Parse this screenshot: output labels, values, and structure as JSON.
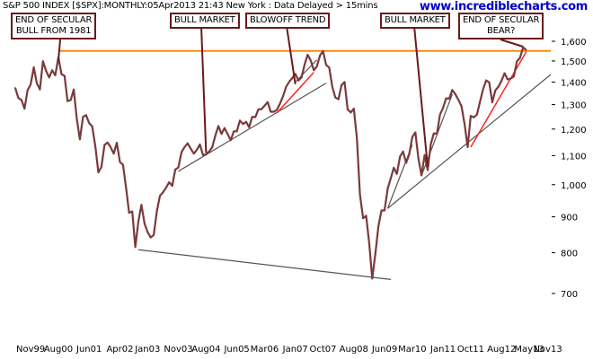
{
  "header": {
    "title": "S&P 500 INDEX [$SPX]:MONTHLY:05Apr2013 21:43 New York : Data Delayed > 15mins",
    "watermark": "www.incrediblecharts.com"
  },
  "annotations": [
    {
      "text": "END OF SECULAR\nBULL FROM 1981",
      "key": "end-of-secular-bull"
    },
    {
      "text": "BULL MARKET",
      "key": "bull-market-1"
    },
    {
      "text": "BLOWOFF TREND",
      "key": "blowoff-trend"
    },
    {
      "text": "BULL MARKET",
      "key": "bull-market-2"
    },
    {
      "text": "END OF SECULAR\nBEAR?",
      "key": "end-of-secular-bear"
    }
  ],
  "colors": {
    "price": "#7a3a3a",
    "resistance": "#ff8a00",
    "trend_red": "#ff2222",
    "trend_grey": "#555555",
    "annotation_border": "#6b1a1a",
    "watermark": "#0000cc"
  },
  "chart_data": {
    "type": "line",
    "title": "S&P 500 INDEX [$SPX]:MONTHLY:05Apr2013 21:43 New York : Data Delayed > 15mins",
    "y_scale": "log",
    "ylim": [
      650,
      1650
    ],
    "y_ticks": [
      700,
      800,
      900,
      1000,
      1100,
      1200,
      1300,
      1400,
      1500,
      1600
    ],
    "y_tick_labels": [
      "700",
      "800",
      "900",
      "1,000",
      "1,100",
      "1,200",
      "1,300",
      "1,400",
      "1,500",
      "1,600"
    ],
    "x_ticks": [
      "Nov99",
      "Aug00",
      "Jun01",
      "Apr02",
      "Jan03",
      "Nov03",
      "Aug04",
      "Jun05",
      "Mar06",
      "Jan07",
      "Oct07",
      "Aug08",
      "Jun09",
      "Mar10",
      "Jan11",
      "Oct11",
      "Aug12",
      "May13",
      "Nov13"
    ],
    "x_range": [
      "1999-06",
      "2013-12"
    ],
    "grid": false,
    "series": [
      {
        "x": [
          "1999-06",
          "1999-07",
          "1999-08",
          "1999-09",
          "1999-10",
          "1999-11",
          "1999-12",
          "2000-01",
          "2000-02",
          "2000-03",
          "2000-04",
          "2000-05",
          "2000-06",
          "2000-07",
          "2000-08",
          "2000-09",
          "2000-10",
          "2000-11",
          "2000-12",
          "2001-01",
          "2001-02",
          "2001-03",
          "2001-04",
          "2001-05",
          "2001-06",
          "2001-07",
          "2001-08",
          "2001-09",
          "2001-10",
          "2001-11",
          "2001-12",
          "2002-01",
          "2002-02",
          "2002-03",
          "2002-04",
          "2002-05",
          "2002-06",
          "2002-07",
          "2002-08",
          "2002-09",
          "2002-10",
          "2002-11",
          "2002-12",
          "2003-01",
          "2003-02",
          "2003-03",
          "2003-04",
          "2003-05",
          "2003-06",
          "2003-07",
          "2003-08",
          "2003-09",
          "2003-10",
          "2003-11",
          "2003-12",
          "2004-01",
          "2004-02",
          "2004-03",
          "2004-04",
          "2004-05",
          "2004-06",
          "2004-07",
          "2004-08",
          "2004-09",
          "2004-10",
          "2004-11",
          "2004-12",
          "2005-01",
          "2005-02",
          "2005-03",
          "2005-04",
          "2005-05",
          "2005-06",
          "2005-07",
          "2005-08",
          "2005-09",
          "2005-10",
          "2005-11",
          "2005-12",
          "2006-01",
          "2006-02",
          "2006-03",
          "2006-04",
          "2006-05",
          "2006-06",
          "2006-07",
          "2006-08",
          "2006-09",
          "2006-10",
          "2006-11",
          "2006-12",
          "2007-01",
          "2007-02",
          "2007-03",
          "2007-04",
          "2007-05",
          "2007-06",
          "2007-07",
          "2007-08",
          "2007-09",
          "2007-10",
          "2007-11",
          "2007-12",
          "2008-01",
          "2008-02",
          "2008-03",
          "2008-04",
          "2008-05",
          "2008-06",
          "2008-07",
          "2008-08",
          "2008-09",
          "2008-10",
          "2008-11",
          "2008-12",
          "2009-01",
          "2009-02",
          "2009-03",
          "2009-04",
          "2009-05",
          "2009-06",
          "2009-07",
          "2009-08",
          "2009-09",
          "2009-10",
          "2009-11",
          "2009-12",
          "2010-01",
          "2010-02",
          "2010-03",
          "2010-04",
          "2010-05",
          "2010-06",
          "2010-07",
          "2010-08",
          "2010-09",
          "2010-10",
          "2010-11",
          "2010-12",
          "2011-01",
          "2011-02",
          "2011-03",
          "2011-04",
          "2011-05",
          "2011-06",
          "2011-07",
          "2011-08",
          "2011-09",
          "2011-10",
          "2011-11",
          "2011-12",
          "2012-01",
          "2012-02",
          "2012-03",
          "2012-04",
          "2012-05",
          "2012-06",
          "2012-07",
          "2012-08",
          "2012-09",
          "2012-10",
          "2012-11",
          "2012-12",
          "2013-01",
          "2013-02",
          "2013-03",
          "2013-04"
        ],
        "y": [
          1373,
          1329,
          1320,
          1283,
          1363,
          1389,
          1469,
          1394,
          1366,
          1499,
          1452,
          1421,
          1455,
          1431,
          1518,
          1437,
          1429,
          1315,
          1320,
          1366,
          1240,
          1160,
          1249,
          1256,
          1224,
          1211,
          1134,
          1041,
          1060,
          1139,
          1148,
          1130,
          1107,
          1147,
          1077,
          1067,
          990,
          912,
          916,
          815,
          886,
          936,
          880,
          856,
          841,
          848,
          917,
          964,
          975,
          990,
          1008,
          996,
          1051,
          1058,
          1112,
          1131,
          1145,
          1126,
          1107,
          1121,
          1141,
          1102,
          1104,
          1115,
          1130,
          1174,
          1212,
          1181,
          1204,
          1181,
          1157,
          1191,
          1191,
          1234,
          1220,
          1229,
          1207,
          1249,
          1248,
          1280,
          1281,
          1295,
          1311,
          1270,
          1270,
          1277,
          1304,
          1336,
          1378,
          1401,
          1418,
          1438,
          1407,
          1421,
          1482,
          1531,
          1503,
          1455,
          1474,
          1527,
          1549,
          1481,
          1468,
          1379,
          1331,
          1323,
          1386,
          1400,
          1280,
          1267,
          1283,
          1166,
          969,
          896,
          903,
          826,
          735,
          798,
          873,
          919,
          919,
          987,
          1021,
          1057,
          1036,
          1096,
          1115,
          1074,
          1104,
          1169,
          1187,
          1089,
          1031,
          1102,
          1049,
          1141,
          1183,
          1181,
          1258,
          1286,
          1327,
          1326,
          1364,
          1345,
          1321,
          1292,
          1219,
          1131,
          1253,
          1247,
          1258,
          1312,
          1366,
          1408,
          1398,
          1310,
          1362,
          1379,
          1406,
          1441,
          1412,
          1416,
          1426,
          1498,
          1515,
          1569,
          1555
        ]
      }
    ],
    "annotations": [
      "END OF SECULAR\nBULL FROM 1981",
      "BULL MARKET",
      "BLOWOFF TREND",
      "BULL MARKET",
      "END OF SECULAR\nBEAR?"
    ]
  }
}
